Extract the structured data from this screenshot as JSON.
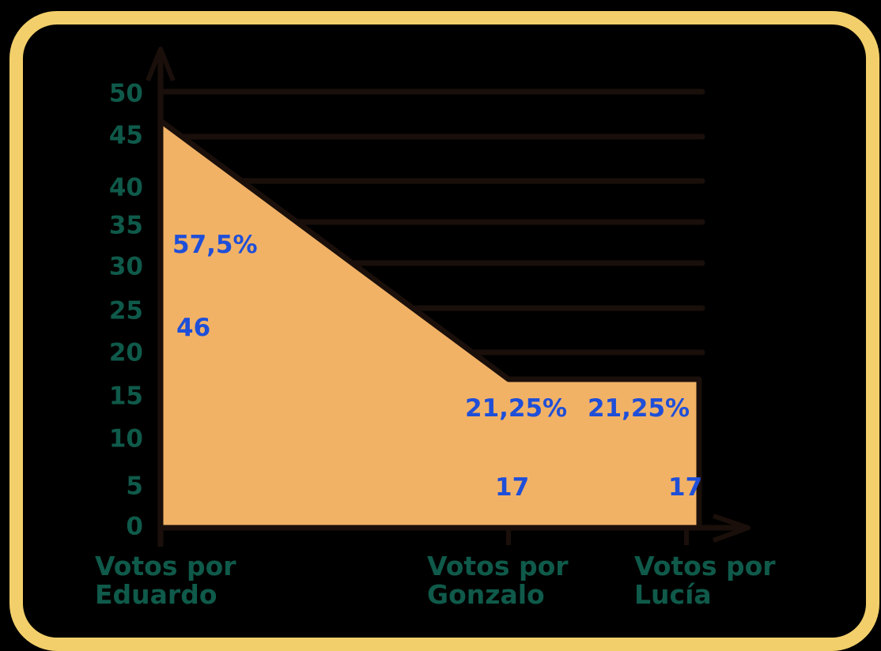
{
  "chart_data": {
    "type": "area",
    "title": "",
    "xlabel": "",
    "ylabel": "",
    "ylim": [
      0,
      50
    ],
    "yticks": [
      0,
      5,
      10,
      15,
      20,
      25,
      30,
      35,
      40,
      45,
      50
    ],
    "categories": [
      [
        "Votos por",
        "Eduardo"
      ],
      [
        "Votos por",
        "Gonzalo"
      ],
      [
        "Votos por",
        "Lucía"
      ]
    ],
    "values": [
      46,
      17,
      17
    ],
    "value_labels": [
      "46",
      "17",
      "17"
    ],
    "percent_labels": [
      "57,5%",
      "21,25%",
      "21,25%"
    ],
    "grid": true,
    "legend": "none"
  },
  "colors": {
    "background": "#000000",
    "frame": "#F2CF6A",
    "area_fill": "#F2B266",
    "axis": "#1A0F0A",
    "tick_text": "#0F5A4A",
    "label_text": "#1F4FD8"
  }
}
